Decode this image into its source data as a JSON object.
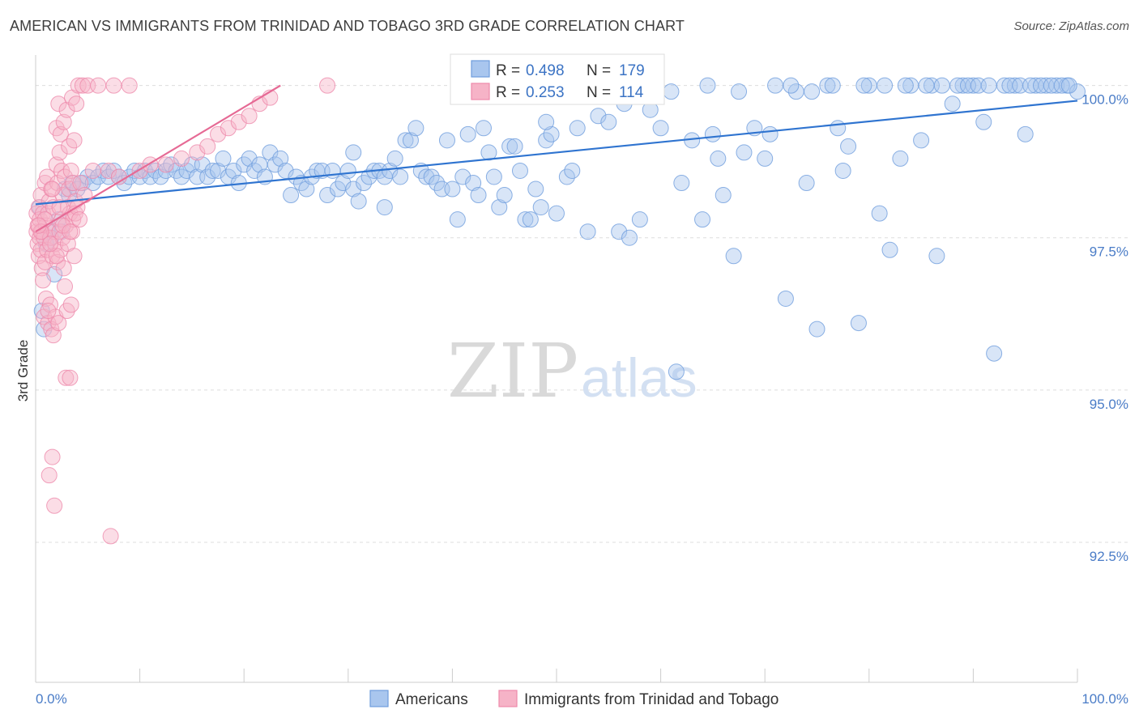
{
  "header": {
    "title": "AMERICAN VS IMMIGRANTS FROM TRINIDAD AND TOBAGO 3RD GRADE CORRELATION CHART",
    "source": "Source: ZipAtlas.com"
  },
  "watermark": {
    "zip": "ZIP",
    "atlas": "atlas"
  },
  "colors": {
    "blue_fill": "#a9c6ee",
    "blue_stroke": "#6f9ddd",
    "blue_line": "#2f74d0",
    "pink_fill": "#f6b3c7",
    "pink_stroke": "#ee8aab",
    "pink_line": "#e66a95",
    "tick_text": "#4a7cc7",
    "grid": "#dddddd"
  },
  "stats": [
    {
      "r_label": "R = ",
      "r_value": "0.498",
      "n_label": "N = ",
      "n_value": "179"
    },
    {
      "r_label": "R = ",
      "r_value": "0.253",
      "n_label": "N = ",
      "n_value": "114"
    }
  ],
  "chart_data": {
    "type": "scatter",
    "title": "AMERICAN VS IMMIGRANTS FROM TRINIDAD AND TOBAGO 3RD GRADE CORRELATION CHART",
    "xlabel": "",
    "ylabel": "3rd Grade",
    "xlim": [
      0,
      100
    ],
    "ylim": [
      90.2,
      100.5
    ],
    "x_tick_labels": [
      "0.0%",
      "100.0%"
    ],
    "y_ticks": [
      92.5,
      95.0,
      97.5,
      100.0
    ],
    "y_tick_labels": [
      "92.5%",
      "95.0%",
      "97.5%",
      "100.0%"
    ],
    "grid": true,
    "legend_position": "bottom-center",
    "series": [
      {
        "name": "Americans",
        "color": "#a9c6ee",
        "trendline": {
          "x": [
            0,
            100
          ],
          "y": [
            98.05,
            99.75
          ]
        },
        "points": [
          [
            0.4,
            98.0
          ],
          [
            0.6,
            96.3
          ],
          [
            0.8,
            96.0
          ],
          [
            1.0,
            97.4
          ],
          [
            1.2,
            97.6
          ],
          [
            1.5,
            97.5
          ],
          [
            1.8,
            96.9
          ],
          [
            2.2,
            97.8
          ],
          [
            2.5,
            97.6
          ],
          [
            2.8,
            98.3
          ],
          [
            3.2,
            98.2
          ],
          [
            3.5,
            98.4
          ],
          [
            4.0,
            98.3
          ],
          [
            4.5,
            98.4
          ],
          [
            5.0,
            98.5
          ],
          [
            5.5,
            98.4
          ],
          [
            6.0,
            98.5
          ],
          [
            6.5,
            98.6
          ],
          [
            7.0,
            98.5
          ],
          [
            7.5,
            98.6
          ],
          [
            8.0,
            98.5
          ],
          [
            8.5,
            98.4
          ],
          [
            9.0,
            98.5
          ],
          [
            9.5,
            98.6
          ],
          [
            10.0,
            98.5
          ],
          [
            10.5,
            98.6
          ],
          [
            11.0,
            98.5
          ],
          [
            11.5,
            98.6
          ],
          [
            12.0,
            98.5
          ],
          [
            12.5,
            98.6
          ],
          [
            13.0,
            98.7
          ],
          [
            13.5,
            98.6
          ],
          [
            14.0,
            98.5
          ],
          [
            14.5,
            98.6
          ],
          [
            15.0,
            98.7
          ],
          [
            15.5,
            98.5
          ],
          [
            16.0,
            98.7
          ],
          [
            16.5,
            98.5
          ],
          [
            17.0,
            98.6
          ],
          [
            17.5,
            98.6
          ],
          [
            18.0,
            98.8
          ],
          [
            18.5,
            98.5
          ],
          [
            19.0,
            98.6
          ],
          [
            19.5,
            98.4
          ],
          [
            20.0,
            98.7
          ],
          [
            20.5,
            98.8
          ],
          [
            21.0,
            98.6
          ],
          [
            21.5,
            98.7
          ],
          [
            22.0,
            98.5
          ],
          [
            22.5,
            98.9
          ],
          [
            23.0,
            98.7
          ],
          [
            23.5,
            98.8
          ],
          [
            24.0,
            98.6
          ],
          [
            24.5,
            98.2
          ],
          [
            25.0,
            98.5
          ],
          [
            25.5,
            98.4
          ],
          [
            26.0,
            98.3
          ],
          [
            26.5,
            98.5
          ],
          [
            27.0,
            98.6
          ],
          [
            27.5,
            98.6
          ],
          [
            28.0,
            98.2
          ],
          [
            28.5,
            98.6
          ],
          [
            29.0,
            98.3
          ],
          [
            29.5,
            98.4
          ],
          [
            30.0,
            98.6
          ],
          [
            30.5,
            98.3
          ],
          [
            31.0,
            98.1
          ],
          [
            31.5,
            98.4
          ],
          [
            32.0,
            98.5
          ],
          [
            32.5,
            98.6
          ],
          [
            33.0,
            98.6
          ],
          [
            33.5,
            98.5
          ],
          [
            34.0,
            98.6
          ],
          [
            34.5,
            98.8
          ],
          [
            35.0,
            98.5
          ],
          [
            35.5,
            99.1
          ],
          [
            36.0,
            99.1
          ],
          [
            36.5,
            99.3
          ],
          [
            37.0,
            98.6
          ],
          [
            37.5,
            98.5
          ],
          [
            38.0,
            98.5
          ],
          [
            38.5,
            98.4
          ],
          [
            39.0,
            98.3
          ],
          [
            39.5,
            99.1
          ],
          [
            40.0,
            98.3
          ],
          [
            40.5,
            97.8
          ],
          [
            41.0,
            98.5
          ],
          [
            41.5,
            99.2
          ],
          [
            42.0,
            98.4
          ],
          [
            42.5,
            98.2
          ],
          [
            43.0,
            99.3
          ],
          [
            43.5,
            98.9
          ],
          [
            44.0,
            98.5
          ],
          [
            44.5,
            98.0
          ],
          [
            45.0,
            98.2
          ],
          [
            45.5,
            99.0
          ],
          [
            46.0,
            99.0
          ],
          [
            46.5,
            98.6
          ],
          [
            47.0,
            97.8
          ],
          [
            47.5,
            97.8
          ],
          [
            48.0,
            98.3
          ],
          [
            48.5,
            98.0
          ],
          [
            49.0,
            99.1
          ],
          [
            49.5,
            99.2
          ],
          [
            50.0,
            97.9
          ],
          [
            51.0,
            98.5
          ],
          [
            52.0,
            99.3
          ],
          [
            53.0,
            97.6
          ],
          [
            54.0,
            99.5
          ],
          [
            55.0,
            99.4
          ],
          [
            56.0,
            97.6
          ],
          [
            57.0,
            97.5
          ],
          [
            58.0,
            97.8
          ],
          [
            59.0,
            99.6
          ],
          [
            60.0,
            99.3
          ],
          [
            61.0,
            99.9
          ],
          [
            62.0,
            98.4
          ],
          [
            63.0,
            99.1
          ],
          [
            64.0,
            97.8
          ],
          [
            65.0,
            99.2
          ],
          [
            66.0,
            98.2
          ],
          [
            67.0,
            97.2
          ],
          [
            68.0,
            98.9
          ],
          [
            69.0,
            99.3
          ],
          [
            70.0,
            98.8
          ],
          [
            71.0,
            100.0
          ],
          [
            72.0,
            96.5
          ],
          [
            73.0,
            99.9
          ],
          [
            74.0,
            98.4
          ],
          [
            75.0,
            96.0
          ],
          [
            76.0,
            100.0
          ],
          [
            77.0,
            99.3
          ],
          [
            78.0,
            99.0
          ],
          [
            79.0,
            96.1
          ],
          [
            80.0,
            100.0
          ],
          [
            81.0,
            97.9
          ],
          [
            82.0,
            97.3
          ],
          [
            83.0,
            98.8
          ],
          [
            84.0,
            100.0
          ],
          [
            85.0,
            99.1
          ],
          [
            86.0,
            100.0
          ],
          [
            87.0,
            100.0
          ],
          [
            88.0,
            99.7
          ],
          [
            89.0,
            100.0
          ],
          [
            90.0,
            100.0
          ],
          [
            91.0,
            99.4
          ],
          [
            92.0,
            95.6
          ],
          [
            93.0,
            100.0
          ],
          [
            94.0,
            100.0
          ],
          [
            95.0,
            99.2
          ],
          [
            96.0,
            100.0
          ],
          [
            97.0,
            100.0
          ],
          [
            98.0,
            100.0
          ],
          [
            99.0,
            100.0
          ],
          [
            100.0,
            99.9
          ],
          [
            30.5,
            98.9
          ],
          [
            33.5,
            98.0
          ],
          [
            49.0,
            99.4
          ],
          [
            51.5,
            98.6
          ],
          [
            56.5,
            99.7
          ],
          [
            61.5,
            95.3
          ],
          [
            65.5,
            98.8
          ],
          [
            67.5,
            99.9
          ],
          [
            70.5,
            99.2
          ],
          [
            72.5,
            100.0
          ],
          [
            74.5,
            99.9
          ],
          [
            76.5,
            100.0
          ],
          [
            77.5,
            98.6
          ],
          [
            79.5,
            100.0
          ],
          [
            81.5,
            100.0
          ],
          [
            83.5,
            100.0
          ],
          [
            85.5,
            100.0
          ],
          [
            86.5,
            97.2
          ],
          [
            88.5,
            100.0
          ],
          [
            89.5,
            100.0
          ],
          [
            90.5,
            100.0
          ],
          [
            91.5,
            100.0
          ],
          [
            93.5,
            100.0
          ],
          [
            94.5,
            100.0
          ],
          [
            95.5,
            100.0
          ],
          [
            96.5,
            100.0
          ],
          [
            97.5,
            100.0
          ],
          [
            98.5,
            100.0
          ],
          [
            99.2,
            100.0
          ],
          [
            64.5,
            100.0
          ]
        ]
      },
      {
        "name": "Immigrants from Trinidad and Tobago",
        "color": "#f6b3c7",
        "trendline": {
          "x": [
            0,
            23.5
          ],
          "y": [
            97.6,
            100.0
          ]
        },
        "points": [
          [
            0.1,
            97.9
          ],
          [
            0.1,
            97.6
          ],
          [
            0.2,
            97.4
          ],
          [
            0.2,
            97.7
          ],
          [
            0.3,
            98.0
          ],
          [
            0.3,
            97.2
          ],
          [
            0.4,
            97.5
          ],
          [
            0.4,
            97.8
          ],
          [
            0.5,
            97.3
          ],
          [
            0.5,
            98.2
          ],
          [
            0.6,
            97.0
          ],
          [
            0.6,
            97.6
          ],
          [
            0.7,
            96.8
          ],
          [
            0.7,
            97.9
          ],
          [
            0.8,
            96.2
          ],
          [
            0.8,
            97.5
          ],
          [
            0.9,
            98.4
          ],
          [
            0.9,
            97.1
          ],
          [
            1.0,
            96.5
          ],
          [
            1.0,
            97.7
          ],
          [
            1.1,
            98.5
          ],
          [
            1.1,
            97.3
          ],
          [
            1.2,
            96.1
          ],
          [
            1.2,
            97.9
          ],
          [
            1.3,
            93.6
          ],
          [
            1.3,
            98.1
          ],
          [
            1.4,
            96.4
          ],
          [
            1.4,
            97.5
          ],
          [
            1.5,
            96.0
          ],
          [
            1.5,
            98.3
          ],
          [
            1.6,
            93.9
          ],
          [
            1.6,
            97.2
          ],
          [
            1.7,
            95.9
          ],
          [
            1.7,
            98.0
          ],
          [
            1.8,
            93.1
          ],
          [
            1.8,
            97.6
          ],
          [
            1.9,
            96.2
          ],
          [
            1.9,
            97.4
          ],
          [
            2.0,
            99.3
          ],
          [
            2.0,
            98.7
          ],
          [
            2.1,
            97.1
          ],
          [
            2.1,
            98.4
          ],
          [
            2.2,
            99.7
          ],
          [
            2.2,
            96.1
          ],
          [
            2.3,
            98.9
          ],
          [
            2.3,
            97.6
          ],
          [
            2.4,
            97.3
          ],
          [
            2.4,
            99.2
          ],
          [
            2.5,
            98.6
          ],
          [
            2.5,
            97.8
          ],
          [
            2.6,
            97.5
          ],
          [
            2.6,
            98.2
          ],
          [
            2.7,
            99.4
          ],
          [
            2.7,
            97.0
          ],
          [
            2.8,
            96.7
          ],
          [
            2.8,
            98.5
          ],
          [
            2.9,
            95.2
          ],
          [
            2.9,
            97.7
          ],
          [
            3.0,
            99.6
          ],
          [
            3.0,
            96.3
          ],
          [
            3.1,
            98.0
          ],
          [
            3.1,
            97.4
          ],
          [
            3.2,
            99.0
          ],
          [
            3.2,
            98.3
          ],
          [
            3.3,
            95.2
          ],
          [
            3.3,
            97.9
          ],
          [
            3.4,
            96.4
          ],
          [
            3.4,
            98.6
          ],
          [
            3.5,
            99.8
          ],
          [
            3.5,
            97.6
          ],
          [
            3.6,
            97.8
          ],
          [
            3.6,
            98.4
          ],
          [
            3.7,
            97.2
          ],
          [
            3.7,
            99.1
          ],
          [
            3.8,
            98.1
          ],
          [
            3.8,
            97.9
          ],
          [
            3.9,
            99.7
          ],
          [
            4.0,
            98.0
          ],
          [
            4.1,
            100.0
          ],
          [
            4.3,
            98.4
          ],
          [
            4.5,
            100.0
          ],
          [
            4.7,
            98.2
          ],
          [
            5.0,
            100.0
          ],
          [
            5.5,
            98.6
          ],
          [
            6.0,
            100.0
          ],
          [
            7.0,
            98.6
          ],
          [
            7.5,
            100.0
          ],
          [
            8.0,
            98.5
          ],
          [
            9.0,
            100.0
          ],
          [
            10.0,
            98.6
          ],
          [
            11.0,
            98.7
          ],
          [
            12.5,
            98.7
          ],
          [
            14.0,
            98.8
          ],
          [
            15.5,
            98.9
          ],
          [
            16.5,
            99.0
          ],
          [
            17.5,
            99.2
          ],
          [
            18.5,
            99.3
          ],
          [
            19.5,
            99.4
          ],
          [
            20.5,
            99.5
          ],
          [
            21.5,
            99.7
          ],
          [
            22.5,
            99.8
          ],
          [
            28.0,
            100.0
          ],
          [
            7.2,
            92.6
          ],
          [
            1.2,
            96.3
          ],
          [
            2.0,
            97.2
          ],
          [
            0.9,
            97.8
          ],
          [
            1.6,
            98.3
          ],
          [
            2.6,
            97.7
          ],
          [
            3.3,
            97.6
          ],
          [
            0.5,
            97.6
          ],
          [
            1.4,
            97.4
          ],
          [
            2.3,
            98.0
          ],
          [
            0.3,
            97.7
          ],
          [
            4.2,
            97.8
          ]
        ]
      }
    ]
  },
  "legend": {
    "items": [
      {
        "label": "Americans",
        "color": "#a9c6ee"
      },
      {
        "label": "Immigrants from Trinidad and Tobago",
        "color": "#f6b3c7"
      }
    ]
  }
}
